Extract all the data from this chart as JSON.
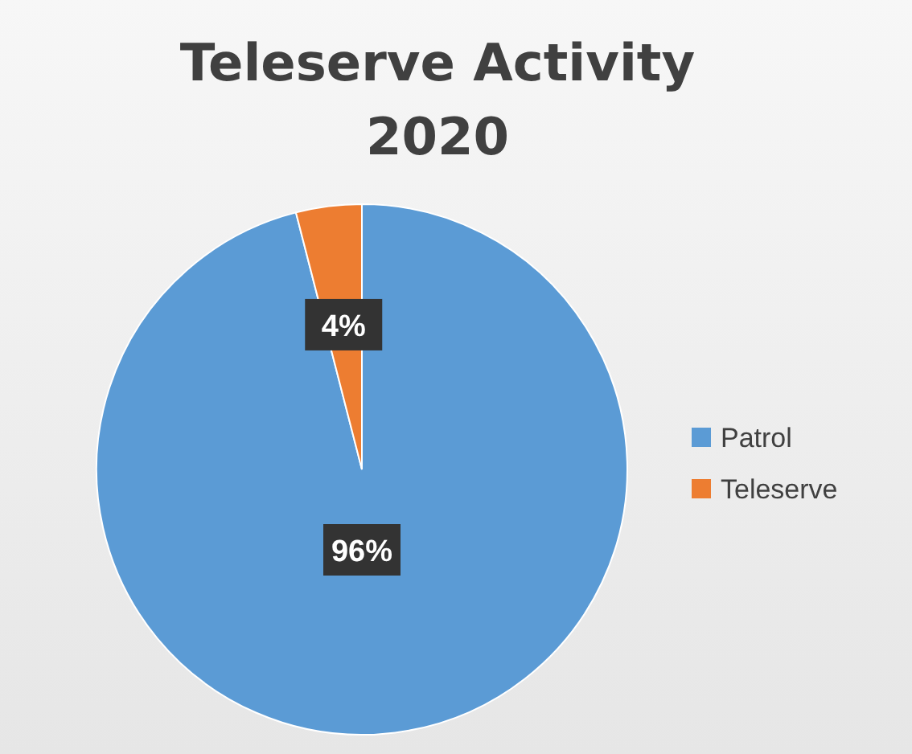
{
  "chart_data": {
    "type": "pie",
    "title": "Teleserve Activity 2020",
    "categories": [
      "Patrol",
      "Teleserve"
    ],
    "values": [
      96,
      4
    ],
    "colors": [
      "#5b9bd5",
      "#ed7d31"
    ],
    "value_labels": [
      "96%",
      "4%"
    ],
    "legend": "right"
  }
}
